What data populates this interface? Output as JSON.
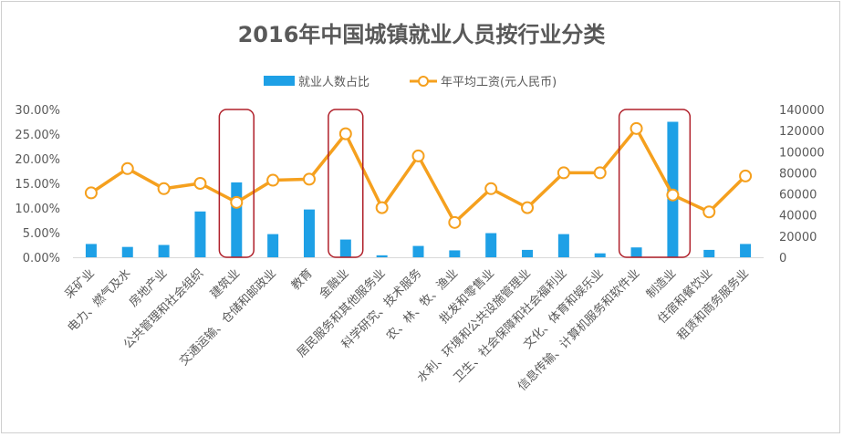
{
  "chart_data": {
    "type": "bar+line",
    "title": "2016年中国城镇就业人员按行业分类",
    "categories": [
      "采矿业",
      "电力、燃气及水",
      "房地产业",
      "公共管理和社会组织",
      "建筑业",
      "交通运输、仓储和邮政业",
      "教育",
      "金融业",
      "居民服务和其他服务业",
      "科学研究、技术服务",
      "农、林、牧、渔业",
      "批发和零售业",
      "水利、环境和公共设施管理业",
      "卫生、社会保障和社会福利业",
      "文化、体育和娱乐业",
      "信息传输、计算机服务和软件业",
      "制造业",
      "住宿和餐饮业",
      "租赁和商务服务业"
    ],
    "series": [
      {
        "name": "就业人数占比",
        "type": "bar",
        "axis": "left",
        "color": "#1ea0e6",
        "values": [
          0.027,
          0.021,
          0.025,
          0.093,
          0.152,
          0.047,
          0.097,
          0.036,
          0.004,
          0.023,
          0.014,
          0.049,
          0.015,
          0.047,
          0.008,
          0.02,
          0.275,
          0.015,
          0.027
        ]
      },
      {
        "name": "年平均工资(元人民币)",
        "type": "line",
        "axis": "right",
        "color": "#f5a01e",
        "values": [
          61000,
          84000,
          65000,
          70000,
          52000,
          73000,
          74000,
          117000,
          47000,
          96000,
          33000,
          65000,
          47000,
          80000,
          80000,
          122000,
          59000,
          43000,
          77000
        ]
      }
    ],
    "y_left": {
      "min": 0,
      "max": 0.3,
      "ticks": [
        "0.00%",
        "5.00%",
        "10.00%",
        "15.00%",
        "20.00%",
        "25.00%",
        "30.00%"
      ]
    },
    "y_right": {
      "min": 0,
      "max": 140000,
      "ticks": [
        "0",
        "20000",
        "40000",
        "60000",
        "80000",
        "100000",
        "120000",
        "140000"
      ]
    },
    "grid": false,
    "legend_position": "top",
    "highlight_color": "#b0202a"
  }
}
